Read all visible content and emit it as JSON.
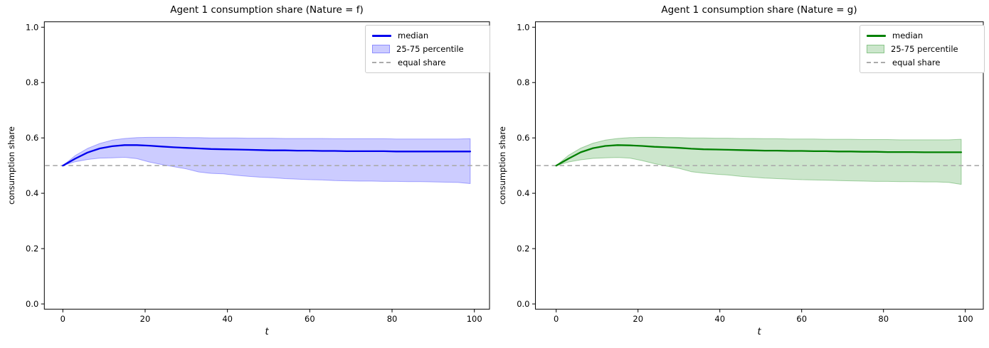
{
  "figure": {
    "background": "#ffffff"
  },
  "chart_data": [
    {
      "type": "line",
      "title": "Agent 1 consumption share (Nature = f)",
      "xlabel": "t",
      "ylabel": "consumption share",
      "xticks": [
        0,
        20,
        40,
        60,
        80,
        100
      ],
      "xtick_labels": [
        "0",
        "20",
        "40",
        "60",
        "80",
        "100"
      ],
      "yticks": [
        0.0,
        0.2,
        0.4,
        0.6,
        0.8,
        1.0
      ],
      "ytick_labels": [
        "0.0",
        "0.2",
        "0.4",
        "0.6",
        "0.8",
        "1.0"
      ],
      "xlim": [
        -5,
        104
      ],
      "ylim": [
        -0.02,
        1.02
      ],
      "grid": false,
      "legend_position": "upper right",
      "legend_labels": [
        "median",
        "25-75 percentile",
        "equal share"
      ],
      "equal_share": 0.5,
      "colors": {
        "median": "#0000ee",
        "band_fill": "rgba(0,0,255,0.20)",
        "band_edge": "rgba(0,0,255,0.30)",
        "equal_share": "#ababab"
      },
      "t": [
        0,
        3,
        6,
        9,
        12,
        15,
        18,
        21,
        24,
        27,
        30,
        33,
        36,
        39,
        42,
        45,
        48,
        51,
        54,
        57,
        60,
        63,
        66,
        69,
        72,
        75,
        78,
        81,
        84,
        87,
        90,
        93,
        96,
        99
      ],
      "series": [
        {
          "name": "median",
          "values": [
            0.5,
            0.525,
            0.547,
            0.562,
            0.57,
            0.574,
            0.574,
            0.572,
            0.569,
            0.566,
            0.564,
            0.562,
            0.56,
            0.559,
            0.558,
            0.557,
            0.556,
            0.555,
            0.555,
            0.554,
            0.554,
            0.553,
            0.553,
            0.552,
            0.552,
            0.552,
            0.552,
            0.551,
            0.551,
            0.551,
            0.551,
            0.551,
            0.551,
            0.551
          ]
        },
        {
          "name": "p75",
          "values": [
            0.5,
            0.536,
            0.562,
            0.58,
            0.592,
            0.598,
            0.601,
            0.602,
            0.602,
            0.602,
            0.601,
            0.601,
            0.6,
            0.6,
            0.6,
            0.599,
            0.599,
            0.599,
            0.598,
            0.598,
            0.598,
            0.598,
            0.597,
            0.597,
            0.597,
            0.597,
            0.597,
            0.596,
            0.596,
            0.596,
            0.596,
            0.596,
            0.596,
            0.597
          ]
        },
        {
          "name": "p25",
          "values": [
            0.5,
            0.514,
            0.522,
            0.527,
            0.528,
            0.53,
            0.525,
            0.513,
            0.504,
            0.496,
            0.488,
            0.477,
            0.472,
            0.47,
            0.465,
            0.461,
            0.458,
            0.456,
            0.453,
            0.451,
            0.449,
            0.448,
            0.446,
            0.445,
            0.444,
            0.444,
            0.443,
            0.443,
            0.442,
            0.442,
            0.441,
            0.44,
            0.439,
            0.435
          ]
        }
      ]
    },
    {
      "type": "line",
      "title": "Agent 1 consumption share (Nature = g)",
      "xlabel": "t",
      "ylabel": "consumption share",
      "xticks": [
        0,
        20,
        40,
        60,
        80,
        100
      ],
      "xtick_labels": [
        "0",
        "20",
        "40",
        "60",
        "80",
        "100"
      ],
      "yticks": [
        0.0,
        0.2,
        0.4,
        0.6,
        0.8,
        1.0
      ],
      "ytick_labels": [
        "0.0",
        "0.2",
        "0.4",
        "0.6",
        "0.8",
        "1.0"
      ],
      "xlim": [
        -5,
        104
      ],
      "ylim": [
        -0.02,
        1.02
      ],
      "grid": false,
      "legend_position": "upper right",
      "legend_labels": [
        "median",
        "25-75 percentile",
        "equal share"
      ],
      "equal_share": 0.5,
      "colors": {
        "median": "#008000",
        "band_fill": "rgba(0,128,0,0.20)",
        "band_edge": "rgba(0,128,0,0.32)",
        "equal_share": "#ababab"
      },
      "t": [
        0,
        3,
        6,
        9,
        12,
        15,
        18,
        21,
        24,
        27,
        30,
        33,
        36,
        39,
        42,
        45,
        48,
        51,
        54,
        57,
        60,
        63,
        66,
        69,
        72,
        75,
        78,
        81,
        84,
        87,
        90,
        93,
        96,
        99
      ],
      "series": [
        {
          "name": "median",
          "values": [
            0.5,
            0.525,
            0.548,
            0.563,
            0.571,
            0.574,
            0.573,
            0.571,
            0.568,
            0.566,
            0.564,
            0.561,
            0.559,
            0.558,
            0.557,
            0.556,
            0.555,
            0.554,
            0.554,
            0.553,
            0.553,
            0.552,
            0.552,
            0.551,
            0.551,
            0.55,
            0.55,
            0.549,
            0.549,
            0.549,
            0.548,
            0.548,
            0.548,
            0.548
          ]
        },
        {
          "name": "p75",
          "values": [
            0.5,
            0.537,
            0.563,
            0.581,
            0.592,
            0.598,
            0.601,
            0.602,
            0.602,
            0.601,
            0.601,
            0.6,
            0.6,
            0.599,
            0.599,
            0.598,
            0.598,
            0.597,
            0.597,
            0.596,
            0.596,
            0.596,
            0.595,
            0.595,
            0.595,
            0.594,
            0.594,
            0.594,
            0.593,
            0.593,
            0.593,
            0.593,
            0.593,
            0.595
          ]
        },
        {
          "name": "p25",
          "values": [
            0.5,
            0.513,
            0.521,
            0.526,
            0.528,
            0.529,
            0.527,
            0.518,
            0.507,
            0.498,
            0.49,
            0.478,
            0.473,
            0.469,
            0.466,
            0.461,
            0.458,
            0.455,
            0.453,
            0.451,
            0.449,
            0.448,
            0.447,
            0.446,
            0.445,
            0.444,
            0.443,
            0.443,
            0.442,
            0.442,
            0.441,
            0.441,
            0.439,
            0.432
          ]
        }
      ]
    }
  ]
}
